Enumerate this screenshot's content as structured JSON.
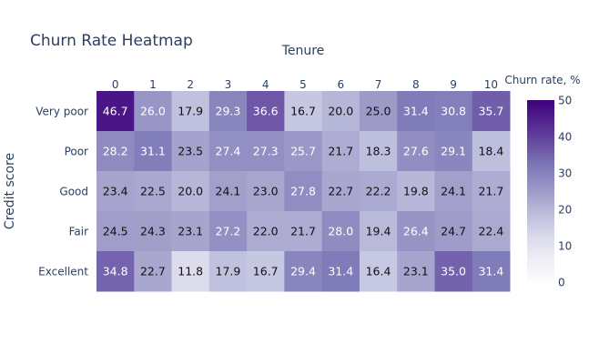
{
  "chart_data": {
    "type": "heatmap",
    "title": "Churn Rate Heatmap",
    "xlabel": "Tenure",
    "ylabel": "Credit score",
    "x_categories": [
      "0",
      "1",
      "2",
      "3",
      "4",
      "5",
      "6",
      "7",
      "8",
      "9",
      "10"
    ],
    "y_categories": [
      "Very poor",
      "Poor",
      "Good",
      "Fair",
      "Excellent"
    ],
    "z": [
      [
        46.7,
        26.0,
        17.9,
        29.3,
        36.6,
        16.7,
        20.0,
        25.0,
        31.4,
        30.8,
        35.7
      ],
      [
        28.2,
        31.1,
        23.5,
        27.4,
        27.3,
        25.7,
        21.7,
        18.3,
        27.6,
        29.1,
        18.4
      ],
      [
        23.4,
        22.5,
        20.0,
        24.1,
        23.0,
        27.8,
        22.7,
        22.2,
        19.8,
        24.1,
        21.7
      ],
      [
        24.5,
        24.3,
        23.1,
        27.2,
        22.0,
        21.7,
        28.0,
        19.4,
        26.4,
        24.7,
        22.4
      ],
      [
        34.8,
        22.7,
        11.8,
        17.9,
        16.7,
        29.4,
        31.4,
        16.4,
        23.1,
        35.0,
        31.4
      ]
    ],
    "colorscale": [
      "#fcfbfd",
      "#efedf5",
      "#dadaeb",
      "#bcbddc",
      "#9e9ac8",
      "#807dba",
      "#6a51a3",
      "#54278f",
      "#3f007d"
    ],
    "colorbar": {
      "title": "Churn rate, %",
      "range": [
        0,
        50
      ],
      "ticks": [
        "0",
        "10",
        "20",
        "30",
        "40",
        "50"
      ]
    }
  }
}
